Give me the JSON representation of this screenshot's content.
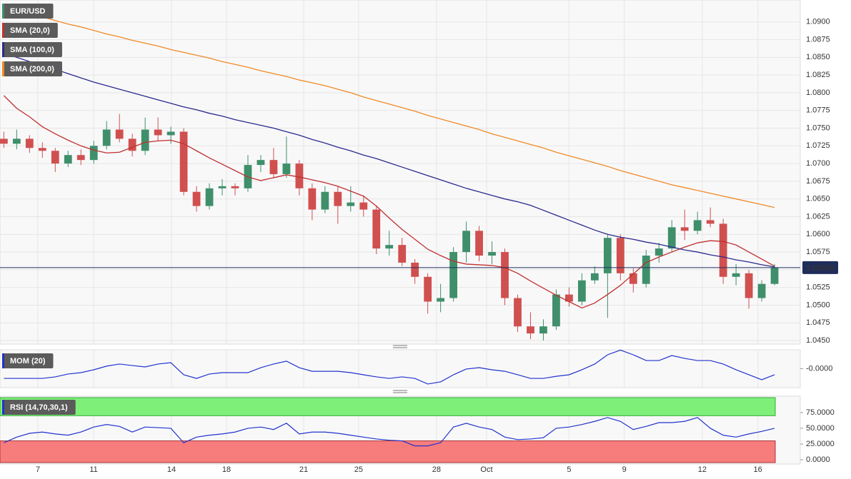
{
  "chart_data": [
    {
      "type": "candlestick",
      "title": "EUR/USD",
      "up_color": "#3f8f6b",
      "down_color": "#d0504f",
      "grid": true,
      "xlim": [
        -0.3,
        62
      ],
      "ylim": [
        1.0445,
        1.0931
      ],
      "xticks": [
        {
          "value": 2.65,
          "label": "7"
        },
        {
          "value": 6.99,
          "label": "11"
        },
        {
          "value": 13.05,
          "label": "14"
        },
        {
          "value": 17.33,
          "label": "18"
        },
        {
          "value": 23.34,
          "label": "21"
        },
        {
          "value": 27.62,
          "label": "25"
        },
        {
          "value": 33.68,
          "label": "28"
        },
        {
          "value": 37.58,
          "label": "Oct"
        },
        {
          "value": 44.0,
          "label": "5"
        },
        {
          "value": 48.3,
          "label": "9"
        },
        {
          "value": 54.37,
          "label": "12"
        },
        {
          "value": 58.7,
          "label": "16"
        }
      ],
      "yticks": [
        {
          "value": 1.045,
          "label": "1.0450"
        },
        {
          "value": 1.0475,
          "label": "1.0475"
        },
        {
          "value": 1.05,
          "label": "1.0500"
        },
        {
          "value": 1.0525,
          "label": "1.0525"
        },
        {
          "value": 1.055,
          "label": "1.0550"
        },
        {
          "value": 1.0575,
          "label": "1.0575"
        },
        {
          "value": 1.06,
          "label": "1.0600"
        },
        {
          "value": 1.0625,
          "label": "1.0625"
        },
        {
          "value": 1.065,
          "label": "1.0650"
        },
        {
          "value": 1.0675,
          "label": "1.0675"
        },
        {
          "value": 1.07,
          "label": "1.0700"
        },
        {
          "value": 1.0725,
          "label": "1.0725"
        },
        {
          "value": 1.075,
          "label": "1.0750"
        },
        {
          "value": 1.0775,
          "label": "1.0775"
        },
        {
          "value": 1.08,
          "label": "1.0800"
        },
        {
          "value": 1.0825,
          "label": "1.0825"
        },
        {
          "value": 1.085,
          "label": "1.0850"
        },
        {
          "value": 1.0875,
          "label": "1.0875"
        },
        {
          "value": 1.09,
          "label": "1.0900"
        }
      ],
      "last_price": {
        "value": 1.0553,
        "label": "1.05530",
        "color": "#1f2d5c"
      },
      "candles": [
        [
          1.0735,
          1.0745,
          1.0722,
          1.0728
        ],
        [
          1.0728,
          1.0748,
          1.072,
          1.0735
        ],
        [
          1.0735,
          1.074,
          1.0715,
          1.0722
        ],
        [
          1.0722,
          1.073,
          1.0708,
          1.0718
        ],
        [
          1.0718,
          1.0722,
          1.0688,
          1.07
        ],
        [
          1.07,
          1.0718,
          1.0695,
          1.0712
        ],
        [
          1.0712,
          1.072,
          1.0698,
          1.0705
        ],
        [
          1.0705,
          1.0732,
          1.07,
          1.0725
        ],
        [
          1.0725,
          1.076,
          1.072,
          1.0748
        ],
        [
          1.0748,
          1.077,
          1.073,
          1.0735
        ],
        [
          1.0735,
          1.0742,
          1.071,
          1.0718
        ],
        [
          1.0718,
          1.0765,
          1.0712,
          1.0748
        ],
        [
          1.0748,
          1.0765,
          1.0732,
          1.074
        ],
        [
          1.074,
          1.0752,
          1.0728,
          1.0745
        ],
        [
          1.0745,
          1.075,
          1.0655,
          1.066
        ],
        [
          1.066,
          1.0668,
          1.0632,
          1.064
        ],
        [
          1.064,
          1.0672,
          1.0635,
          1.0665
        ],
        [
          1.0665,
          1.0678,
          1.0655,
          1.0668
        ],
        [
          1.0668,
          1.0672,
          1.0655,
          1.0665
        ],
        [
          1.0665,
          1.0712,
          1.066,
          1.0698
        ],
        [
          1.0698,
          1.0712,
          1.0688,
          1.0705
        ],
        [
          1.0705,
          1.0722,
          1.068,
          1.0685
        ],
        [
          1.0685,
          1.0738,
          1.068,
          1.07
        ],
        [
          1.07,
          1.0705,
          1.0655,
          1.0665
        ],
        [
          1.0665,
          1.0672,
          1.062,
          1.0635
        ],
        [
          1.0635,
          1.0668,
          1.063,
          1.066
        ],
        [
          1.066,
          1.0668,
          1.0615,
          1.064
        ],
        [
          1.064,
          1.0668,
          1.0632,
          1.0645
        ],
        [
          1.0645,
          1.0655,
          1.0625,
          1.0635
        ],
        [
          1.0635,
          1.064,
          1.0572,
          1.058
        ],
        [
          1.058,
          1.0605,
          1.057,
          1.0585
        ],
        [
          1.0585,
          1.0595,
          1.0555,
          1.056
        ],
        [
          1.056,
          1.0565,
          1.053,
          1.054
        ],
        [
          1.054,
          1.0545,
          1.0488,
          1.0505
        ],
        [
          1.0505,
          1.053,
          1.049,
          1.051
        ],
        [
          1.051,
          1.0582,
          1.0505,
          1.0575
        ],
        [
          1.0575,
          1.0618,
          1.056,
          1.0605
        ],
        [
          1.0605,
          1.0612,
          1.0562,
          1.057
        ],
        [
          1.057,
          1.059,
          1.0558,
          1.0575
        ],
        [
          1.0575,
          1.058,
          1.05,
          1.051
        ],
        [
          1.051,
          1.0515,
          1.0462,
          1.047
        ],
        [
          1.047,
          1.049,
          1.0452,
          1.046
        ],
        [
          1.046,
          1.048,
          1.045,
          1.047
        ],
        [
          1.047,
          1.0522,
          1.0465,
          1.0515
        ],
        [
          1.0515,
          1.0525,
          1.0498,
          1.0505
        ],
        [
          1.0505,
          1.0545,
          1.05,
          1.0535
        ],
        [
          1.0535,
          1.0555,
          1.053,
          1.0545
        ],
        [
          1.0545,
          1.06,
          1.0482,
          1.0595
        ],
        [
          1.0595,
          1.06,
          1.0535,
          1.0545
        ],
        [
          1.0545,
          1.0552,
          1.0518,
          1.053
        ],
        [
          1.053,
          1.0578,
          1.0525,
          1.057
        ],
        [
          1.057,
          1.0588,
          1.056,
          1.058
        ],
        [
          1.058,
          1.062,
          1.0575,
          1.061
        ],
        [
          1.061,
          1.0635,
          1.0592,
          1.0605
        ],
        [
          1.0605,
          1.0632,
          1.06,
          1.062
        ],
        [
          1.062,
          1.0638,
          1.061,
          1.0615
        ],
        [
          1.0615,
          1.0622,
          1.053,
          1.054
        ],
        [
          1.054,
          1.0558,
          1.0528,
          1.0545
        ],
        [
          1.0545,
          1.055,
          1.0495,
          1.051
        ],
        [
          1.051,
          1.0535,
          1.0505,
          1.053
        ],
        [
          1.053,
          1.0558,
          1.0528,
          1.0553
        ]
      ],
      "series": [
        {
          "name": "SMA (20,0)",
          "color": "#c0302e",
          "values": [
            1.0796,
            1.0778,
            1.0766,
            1.0752,
            1.0742,
            1.0733,
            1.0725,
            1.0719,
            1.0715,
            1.0716,
            1.0723,
            1.073,
            1.0732,
            1.0733,
            1.0728,
            1.0718,
            1.0708,
            1.0699,
            1.069,
            1.0681,
            1.0676,
            1.068,
            1.0684,
            1.0681,
            1.0677,
            1.0673,
            1.0668,
            1.0661,
            1.0654,
            1.064,
            1.0623,
            1.0607,
            1.0593,
            1.0579,
            1.057,
            1.0562,
            1.0558,
            1.0557,
            1.0556,
            1.0553,
            1.0545,
            1.0534,
            1.0524,
            1.0514,
            1.0505,
            1.0496,
            1.0503,
            1.0515,
            1.0528,
            1.0544,
            1.056,
            1.0568,
            1.0575,
            1.0582,
            1.0588,
            1.0591,
            1.059,
            1.0585,
            1.0575,
            1.0565,
            1.0555
          ]
        },
        {
          "name": "SMA (100,0)",
          "color": "#2b2a8c",
          "values": [
            1.0856,
            1.085,
            1.0844,
            1.0839,
            1.0833,
            1.0827,
            1.0821,
            1.0815,
            1.081,
            1.0805,
            1.08,
            1.0795,
            1.079,
            1.0785,
            1.078,
            1.0776,
            1.0771,
            1.0767,
            1.0762,
            1.0758,
            1.0754,
            1.075,
            1.0745,
            1.074,
            1.0734,
            1.0729,
            1.0723,
            1.0718,
            1.0712,
            1.0707,
            1.0701,
            1.0695,
            1.0689,
            1.0683,
            1.0677,
            1.0671,
            1.0665,
            1.066,
            1.0655,
            1.065,
            1.0646,
            1.0641,
            1.0634,
            1.0627,
            1.062,
            1.0613,
            1.0606,
            1.06,
            1.0596,
            1.0593,
            1.0589,
            1.0586,
            1.0582,
            1.0578,
            1.0575,
            1.0571,
            1.0568,
            1.0564,
            1.0561,
            1.0557,
            1.0554
          ]
        },
        {
          "name": "SMA (200,0)",
          "color": "#f08a24",
          "values": [
            1.0921,
            1.0916,
            1.0912,
            1.0907,
            1.0902,
            1.0897,
            1.0893,
            1.0888,
            1.0883,
            1.0879,
            1.0874,
            1.087,
            1.0866,
            1.0861,
            1.0857,
            1.0853,
            1.0849,
            1.0844,
            1.084,
            1.0836,
            1.0831,
            1.0827,
            1.0823,
            1.0818,
            1.0814,
            1.081,
            1.0805,
            1.08,
            1.0794,
            1.0789,
            1.0784,
            1.0779,
            1.0774,
            1.0768,
            1.0763,
            1.0758,
            1.0753,
            1.0748,
            1.0742,
            1.0737,
            1.0732,
            1.0727,
            1.0722,
            1.0716,
            1.0711,
            1.0706,
            1.0701,
            1.0696,
            1.069,
            1.0685,
            1.068,
            1.0675,
            1.067,
            1.0666,
            1.0662,
            1.0658,
            1.0654,
            1.065,
            1.0646,
            1.0642,
            1.0638
          ]
        }
      ]
    },
    {
      "type": "line",
      "title": "MOM (20)",
      "color": "#2233cc",
      "ylim": [
        -0.0125,
        0.0125
      ],
      "yticks": [
        {
          "value": 0,
          "label": "-0.0000"
        }
      ],
      "values": [
        -0.0064,
        -0.0064,
        -0.0064,
        -0.0064,
        -0.0054,
        -0.0035,
        -0.0026,
        -0.0007,
        0.0017,
        0.0031,
        0.0021,
        0.0012,
        0.0031,
        0.004,
        -0.004,
        -0.0064,
        -0.0035,
        -0.0026,
        -0.0026,
        -0.0026,
        0.0007,
        0.0031,
        0.005,
        0.0007,
        -0.0017,
        -0.0017,
        -0.0017,
        -0.0026,
        -0.004,
        -0.0054,
        -0.0064,
        -0.0054,
        -0.0064,
        -0.0101,
        -0.0087,
        -0.004,
        -0.0002,
        0.0007,
        -0.0007,
        -0.0017,
        -0.004,
        -0.0064,
        -0.0064,
        -0.005,
        -0.004,
        -0.0007,
        0.0031,
        0.0092,
        0.0123,
        0.0092,
        0.0054,
        0.0054,
        0.0087,
        0.0068,
        0.0054,
        0.0054,
        0.0031,
        -0.0007,
        -0.004,
        -0.0073,
        -0.004
      ]
    },
    {
      "type": "line",
      "title": "RSI (14,70,30,1)",
      "color": "#2233cc",
      "ylim": [
        -6.8,
        101
      ],
      "upper": 70,
      "lower": 30,
      "upper_color": "#7ef07a",
      "lower_color": "#f77d7d",
      "yticks": [
        {
          "value": 0,
          "label": "0.0000"
        },
        {
          "value": 25,
          "label": "25.0000"
        },
        {
          "value": 50,
          "label": "50.0000"
        },
        {
          "value": 75,
          "label": "75.0000"
        }
      ],
      "values": [
        27,
        36,
        42,
        44,
        41,
        39,
        44,
        52,
        56,
        53,
        44,
        52,
        51,
        50,
        27,
        36,
        39,
        41,
        44,
        50,
        52,
        48,
        58,
        41,
        44,
        44,
        42,
        39,
        36,
        33,
        31,
        30,
        22,
        22,
        27,
        52,
        58,
        52,
        48,
        36,
        32,
        33,
        35,
        50,
        52,
        56,
        61,
        67,
        61,
        48,
        53,
        59,
        59,
        61,
        67,
        50,
        39,
        36,
        41,
        45,
        50
      ]
    }
  ]
}
